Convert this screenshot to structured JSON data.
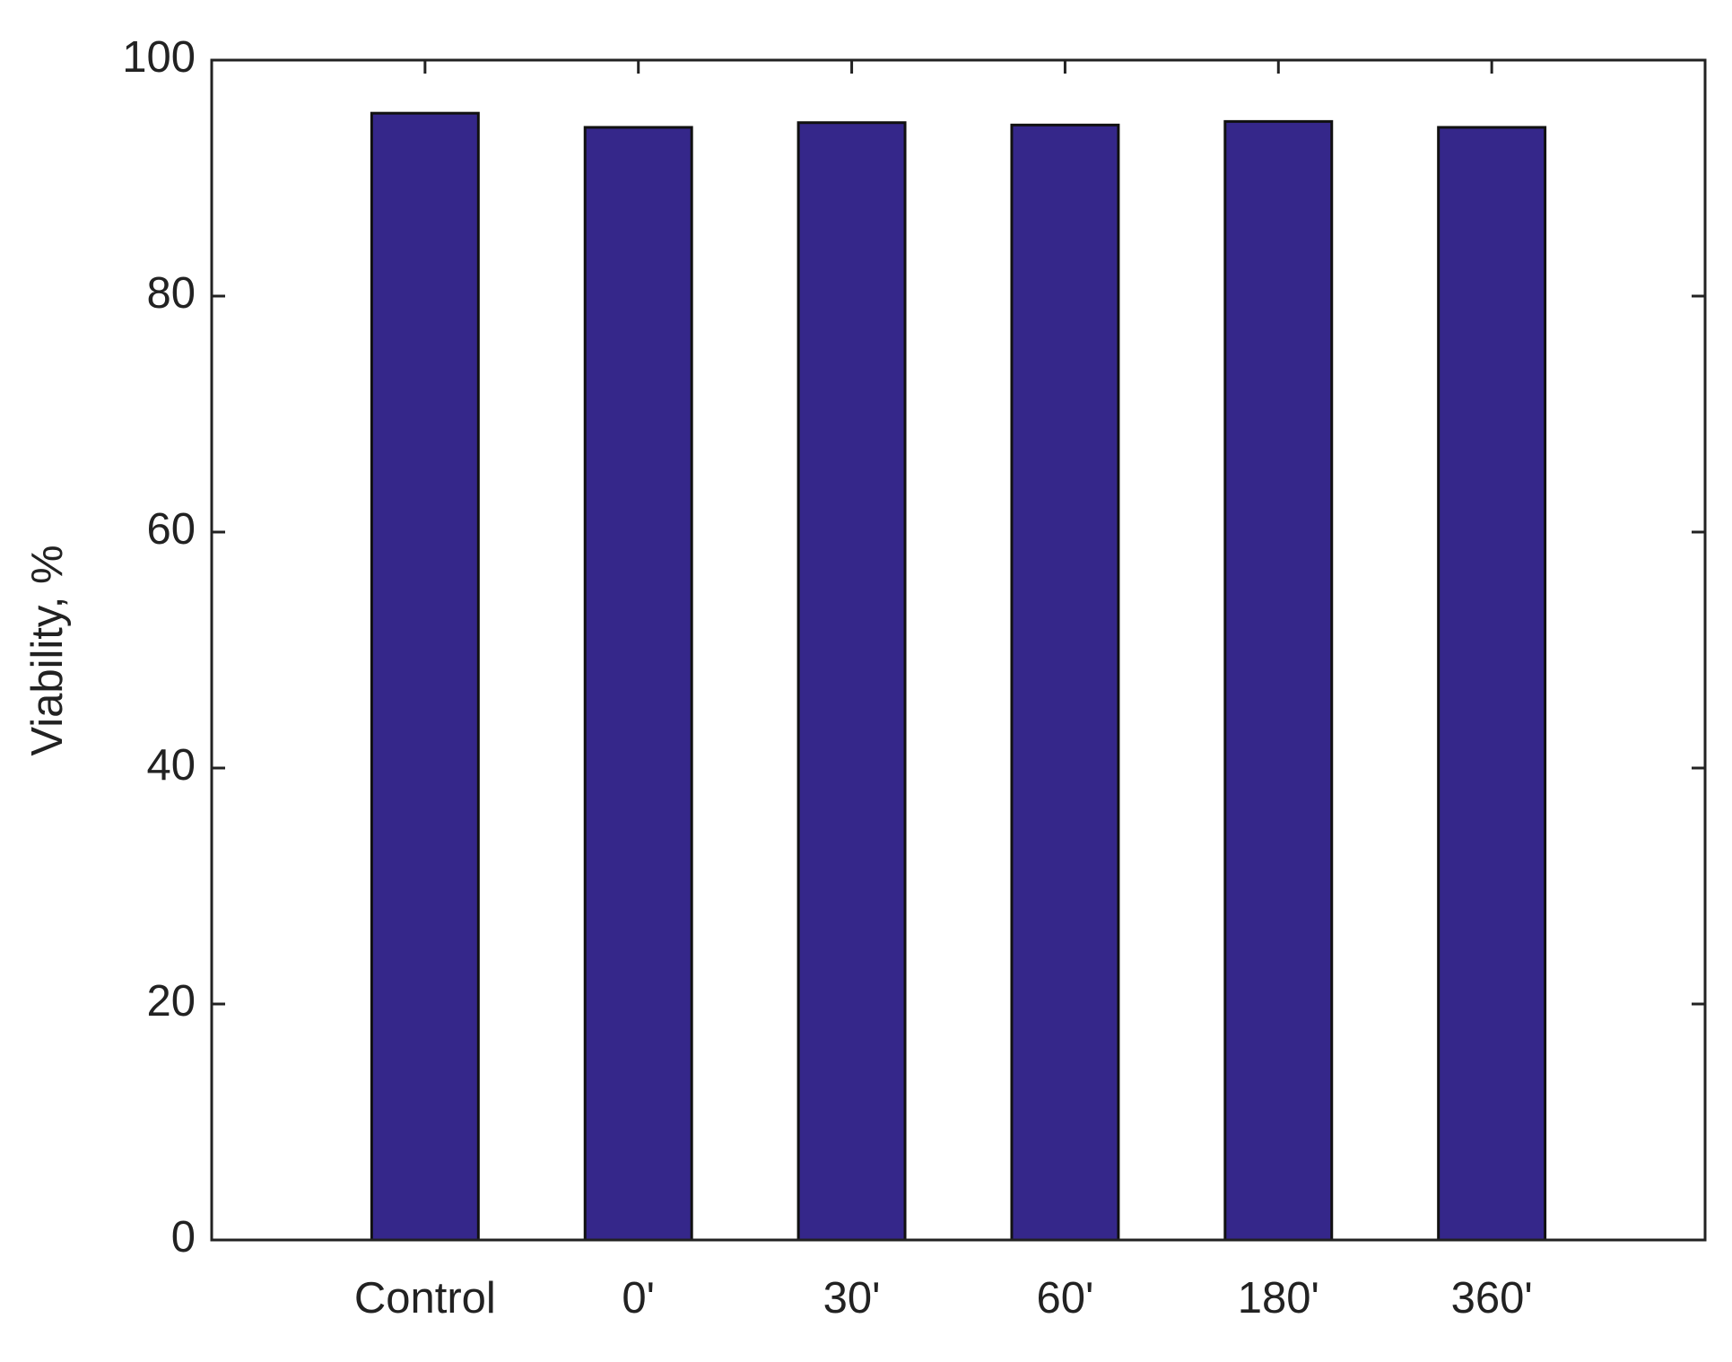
{
  "chart_data": {
    "type": "bar",
    "y_label": "Viability, %",
    "categories": [
      "Control",
      "0'",
      "30'",
      "60'",
      "180'",
      "360'"
    ],
    "values": [
      95.5,
      94.3,
      94.7,
      94.5,
      94.8,
      94.3
    ],
    "color": "#35278a",
    "ylim": [
      0,
      100
    ],
    "yticks": [
      0,
      20,
      40,
      60,
      80,
      100
    ],
    "grid": false
  }
}
